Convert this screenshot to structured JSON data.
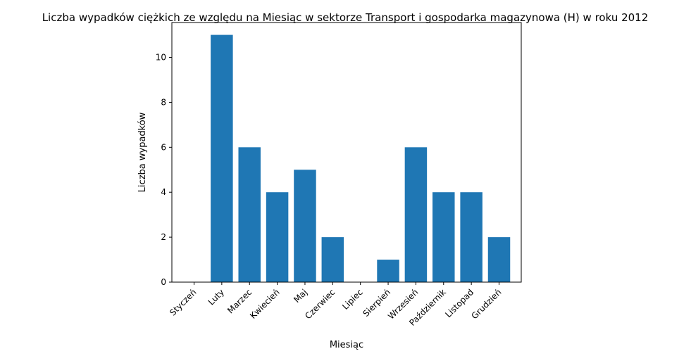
{
  "chart_data": {
    "type": "bar",
    "title": "Liczba wypadków ciężkich ze względu na Miesiąc w sektorze Transport i gospodarka magazynowa (H) w roku 2012",
    "xlabel": "Miesiąc",
    "ylabel": "Liczba wypadków",
    "categories": [
      "Styczeń",
      "Luty",
      "Marzec",
      "Kwiecień",
      "Maj",
      "Czerwiec",
      "Lipiec",
      "Sierpień",
      "Wrzesień",
      "Październik",
      "Listopad",
      "Grudzień"
    ],
    "values": [
      0,
      11,
      6,
      4,
      5,
      2,
      0,
      1,
      6,
      4,
      4,
      2
    ],
    "ylim": [
      0,
      11.55
    ],
    "yticks": [
      0,
      2,
      4,
      6,
      8,
      10
    ],
    "grid": false,
    "bar_color": "#1f77b4"
  }
}
